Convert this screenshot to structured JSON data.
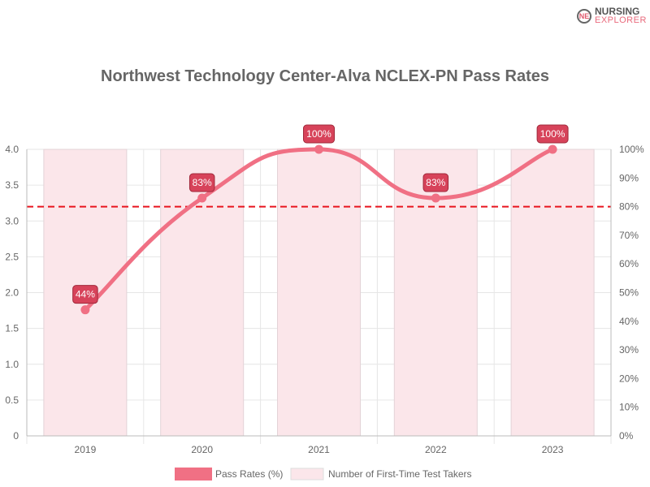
{
  "logo": {
    "line1": "NURSING",
    "line2": "EXPLORER",
    "mark": "NE"
  },
  "chart_data": {
    "type": "bar+line",
    "title": "Northwest Technology Center-Alva NCLEX-PN Pass Rates",
    "categories": [
      "2019",
      "2020",
      "2021",
      "2022",
      "2023"
    ],
    "series": [
      {
        "name": "Pass Rates (%)",
        "type": "line",
        "axis": "right",
        "values": [
          44,
          83,
          100,
          83,
          100
        ],
        "labels": [
          "44%",
          "83%",
          "100%",
          "83%",
          "100%"
        ],
        "color": "#f07084"
      },
      {
        "name": "Number of First-Time Test Takers",
        "type": "bar",
        "axis": "left",
        "values": [
          4,
          4,
          4,
          4,
          4
        ],
        "color": "#fbe6ea"
      }
    ],
    "left_axis": {
      "ylim": [
        0,
        4
      ],
      "ticks": [
        "0",
        "0.5",
        "1.0",
        "1.5",
        "2.0",
        "2.5",
        "3.0",
        "3.5",
        "4.0"
      ]
    },
    "right_axis": {
      "ylim": [
        0,
        100
      ],
      "ticks": [
        "0%",
        "10%",
        "20%",
        "30%",
        "40%",
        "50%",
        "60%",
        "70%",
        "80%",
        "90%",
        "100%"
      ]
    },
    "reference_line": {
      "value": 80,
      "axis": "right",
      "color": "#e8141e"
    },
    "legend": "bottom",
    "grid": true
  }
}
